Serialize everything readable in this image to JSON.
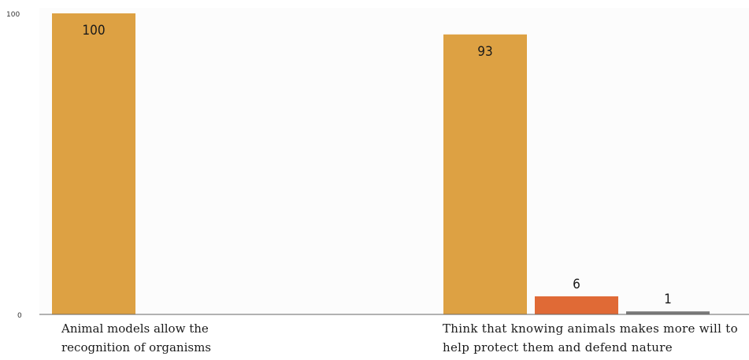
{
  "chart_data": {
    "type": "bar",
    "title": "",
    "xlabel": "",
    "ylabel": "",
    "ylim": [
      0,
      100
    ],
    "yticks": [
      "0",
      "100"
    ],
    "grid": false,
    "legend": "none",
    "groups": [
      {
        "label": "Animal models allow the\nrecognition of organisms",
        "bars": [
          {
            "value": 100,
            "label": "100",
            "color": "#DDA143"
          }
        ]
      },
      {
        "label": "Think that knowing animals makes more will to\nhelp protect them and defend nature",
        "bars": [
          {
            "value": 93,
            "label": "93",
            "color": "#DDA143"
          },
          {
            "value": 6,
            "label": "6",
            "color": "#E06A36"
          },
          {
            "value": 1,
            "label": "1",
            "color": "#7A7A7A"
          }
        ]
      }
    ]
  }
}
